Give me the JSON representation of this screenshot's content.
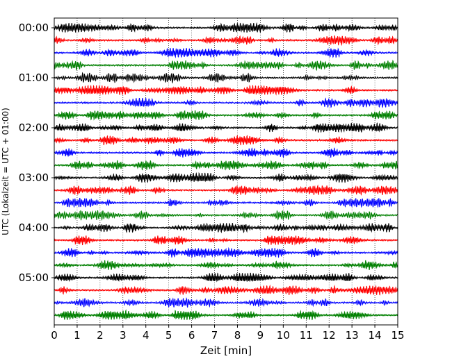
{
  "chart_data": {
    "type": "line",
    "title": "",
    "xlabel": "Zeit  [min]",
    "ylabel": "UTC (Lokalzeit = UTC + 01:00)",
    "xlim": [
      0,
      15
    ],
    "x_ticks": [
      0,
      1,
      2,
      3,
      4,
      5,
      6,
      7,
      8,
      9,
      10,
      11,
      12,
      13,
      14,
      15
    ],
    "row_labels": [
      "00:00",
      "01:00",
      "02:00",
      "03:00",
      "04:00",
      "05:00"
    ],
    "rows_per_hour": 4,
    "row_count": 24,
    "row_minutes": 15,
    "grid": true,
    "grid_axis": "x",
    "trace_colors": [
      "#000000",
      "#ff0000",
      "#0000ff",
      "#008000"
    ],
    "series": []
  }
}
